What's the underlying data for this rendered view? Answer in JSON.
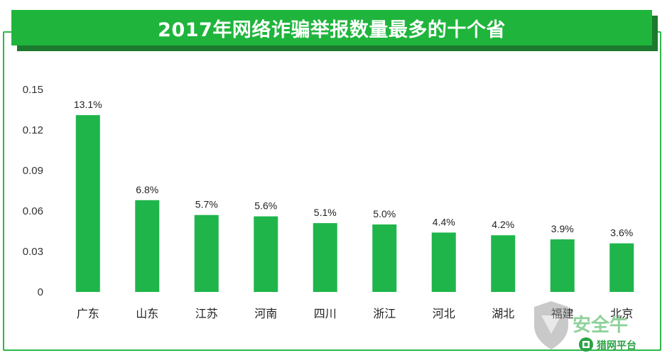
{
  "watermark": {
    "brand_name": "安全牛",
    "platform_name": "猎网平台"
  },
  "colors": {
    "bar": "#1fb54b",
    "title_bg": "#1fb53c",
    "frame": "#2db84a"
  },
  "chart_data": {
    "type": "bar",
    "title": "2017年网络诈骗举报数量最多的十个省",
    "xlabel": "",
    "ylabel": "",
    "ylim": [
      0,
      0.15
    ],
    "y_ticks": [
      "0",
      "0.03",
      "0.06",
      "0.09",
      "0.12",
      "0.15"
    ],
    "categories": [
      "广东",
      "山东",
      "江苏",
      "河南",
      "四川",
      "浙江",
      "河北",
      "湖北",
      "福建",
      "北京"
    ],
    "values": [
      0.131,
      0.068,
      0.057,
      0.056,
      0.051,
      0.05,
      0.044,
      0.042,
      0.039,
      0.036
    ],
    "data_labels": [
      "13.1%",
      "6.8%",
      "5.7%",
      "5.6%",
      "5.1%",
      "5.0%",
      "4.4%",
      "4.2%",
      "3.9%",
      "3.6%"
    ],
    "grid": false,
    "legend": "none"
  }
}
